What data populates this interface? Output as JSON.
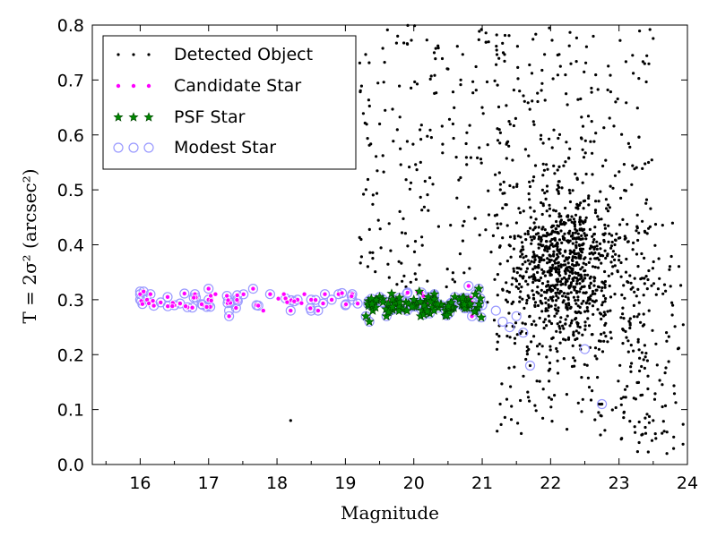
{
  "chart_data": {
    "type": "scatter",
    "xlabel": "Magnitude",
    "ylabel": "T = 2σ² (arcsec²)",
    "xlim": [
      15.3,
      24
    ],
    "ylim": [
      0.0,
      0.8
    ],
    "xticks": [
      "16",
      "17",
      "18",
      "19",
      "20",
      "21",
      "22",
      "23",
      "24"
    ],
    "yticks": [
      "0.0",
      "0.1",
      "0.2",
      "0.3",
      "0.4",
      "0.5",
      "0.6",
      "0.7",
      "0.8"
    ],
    "grid": false,
    "legend_position": "top-left",
    "series": [
      {
        "name": "Detected Object",
        "marker": "dot",
        "color": "#000000",
        "count_estimate": 1500,
        "dense_region": "x 21.3–23.2, y 0.2–0.6",
        "points": [
          [
            18.2,
            0.08
          ],
          [
            20.5,
            0.72
          ],
          [
            21.0,
            0.65
          ],
          [
            19.5,
            0.62
          ],
          [
            20.1,
            0.55
          ],
          [
            22.7,
            0.11
          ],
          [
            23.5,
            0.08
          ],
          [
            23.8,
            0.05
          ],
          [
            23.7,
            0.02
          ],
          [
            22.5,
            0.48
          ],
          [
            21.8,
            0.38
          ],
          [
            22.2,
            0.34
          ]
        ]
      },
      {
        "name": "Candidate Star",
        "marker": "circle",
        "color": "#ff00ff",
        "count_estimate": 110,
        "points": [
          [
            16.0,
            0.31
          ],
          [
            16.05,
            0.315
          ],
          [
            16.1,
            0.3
          ],
          [
            16.15,
            0.31
          ],
          [
            16.3,
            0.295
          ],
          [
            16.4,
            0.305
          ],
          [
            16.5,
            0.29
          ],
          [
            16.8,
            0.31
          ],
          [
            17.0,
            0.3
          ],
          [
            17.0,
            0.32
          ],
          [
            17.1,
            0.31
          ],
          [
            17.3,
            0.27
          ],
          [
            17.4,
            0.285
          ],
          [
            17.65,
            0.32
          ],
          [
            17.7,
            0.29
          ],
          [
            17.8,
            0.28
          ],
          [
            17.9,
            0.31
          ],
          [
            18.1,
            0.31
          ],
          [
            18.2,
            0.28
          ],
          [
            18.3,
            0.3
          ],
          [
            18.4,
            0.31
          ],
          [
            18.5,
            0.3
          ],
          [
            18.6,
            0.28
          ],
          [
            18.7,
            0.31
          ],
          [
            18.8,
            0.3
          ],
          [
            18.9,
            0.31
          ],
          [
            19.0,
            0.29
          ],
          [
            19.1,
            0.31
          ],
          [
            20.8,
            0.325
          ],
          [
            20.85,
            0.27
          ]
        ]
      },
      {
        "name": "PSF Star",
        "marker": "star",
        "color": "#008800",
        "count_estimate": 120,
        "points": [
          [
            19.3,
            0.27
          ],
          [
            19.35,
            0.26
          ],
          [
            19.4,
            0.28
          ],
          [
            19.5,
            0.305
          ],
          [
            19.6,
            0.27
          ],
          [
            19.7,
            0.3
          ],
          [
            19.8,
            0.285
          ],
          [
            19.9,
            0.28
          ],
          [
            20.0,
            0.3
          ],
          [
            20.1,
            0.27
          ],
          [
            20.2,
            0.3
          ],
          [
            20.3,
            0.31
          ],
          [
            20.4,
            0.29
          ],
          [
            20.5,
            0.28
          ],
          [
            20.6,
            0.305
          ],
          [
            20.7,
            0.29
          ],
          [
            20.8,
            0.3
          ],
          [
            20.9,
            0.31
          ],
          [
            20.95,
            0.32
          ]
        ]
      },
      {
        "name": "Modest Star",
        "marker": "open-circle",
        "color": "#9999ff",
        "count_estimate": 150,
        "points": [
          [
            16.0,
            0.3
          ],
          [
            16.0,
            0.315
          ],
          [
            17.0,
            0.29
          ],
          [
            17.3,
            0.28
          ],
          [
            18.5,
            0.28
          ],
          [
            19.1,
            0.3
          ],
          [
            19.3,
            0.27
          ],
          [
            21.0,
            0.29
          ],
          [
            21.2,
            0.28
          ],
          [
            21.3,
            0.26
          ],
          [
            21.4,
            0.25
          ],
          [
            21.5,
            0.27
          ],
          [
            21.6,
            0.24
          ],
          [
            21.7,
            0.18
          ],
          [
            22.5,
            0.21
          ],
          [
            22.75,
            0.11
          ]
        ]
      }
    ]
  }
}
